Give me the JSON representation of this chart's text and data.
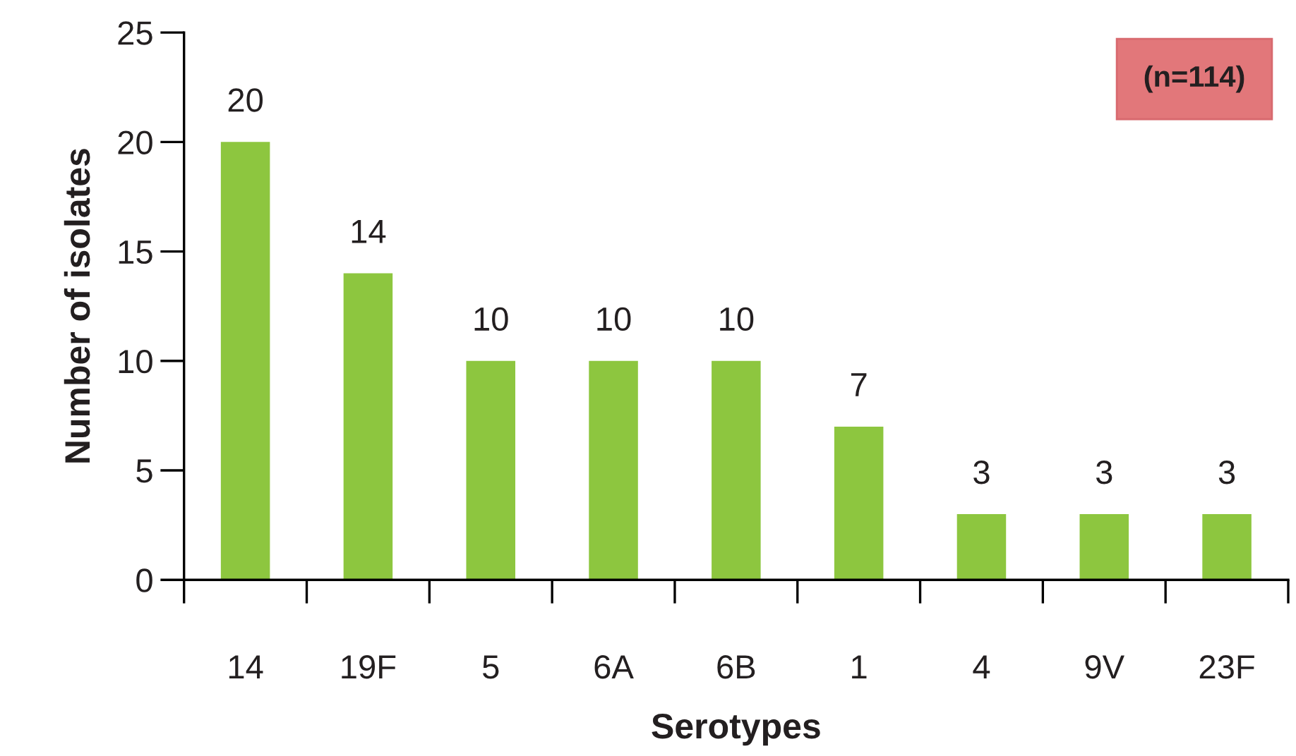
{
  "chart_data": {
    "type": "bar",
    "xlabel": "Serotypes",
    "ylabel": "Number of isolates",
    "categories": [
      "14",
      "19F",
      "5",
      "6A",
      "6B",
      "1",
      "4",
      "9V",
      "23F"
    ],
    "values": [
      20,
      14,
      10,
      10,
      10,
      7,
      3,
      3,
      3
    ],
    "color": "#8dc63f",
    "ylim": [
      0,
      25
    ],
    "yticks": [
      0,
      5,
      10,
      15,
      20,
      25
    ],
    "data_labels": true,
    "grid": false,
    "annotations": [
      "(n=114)"
    ]
  }
}
